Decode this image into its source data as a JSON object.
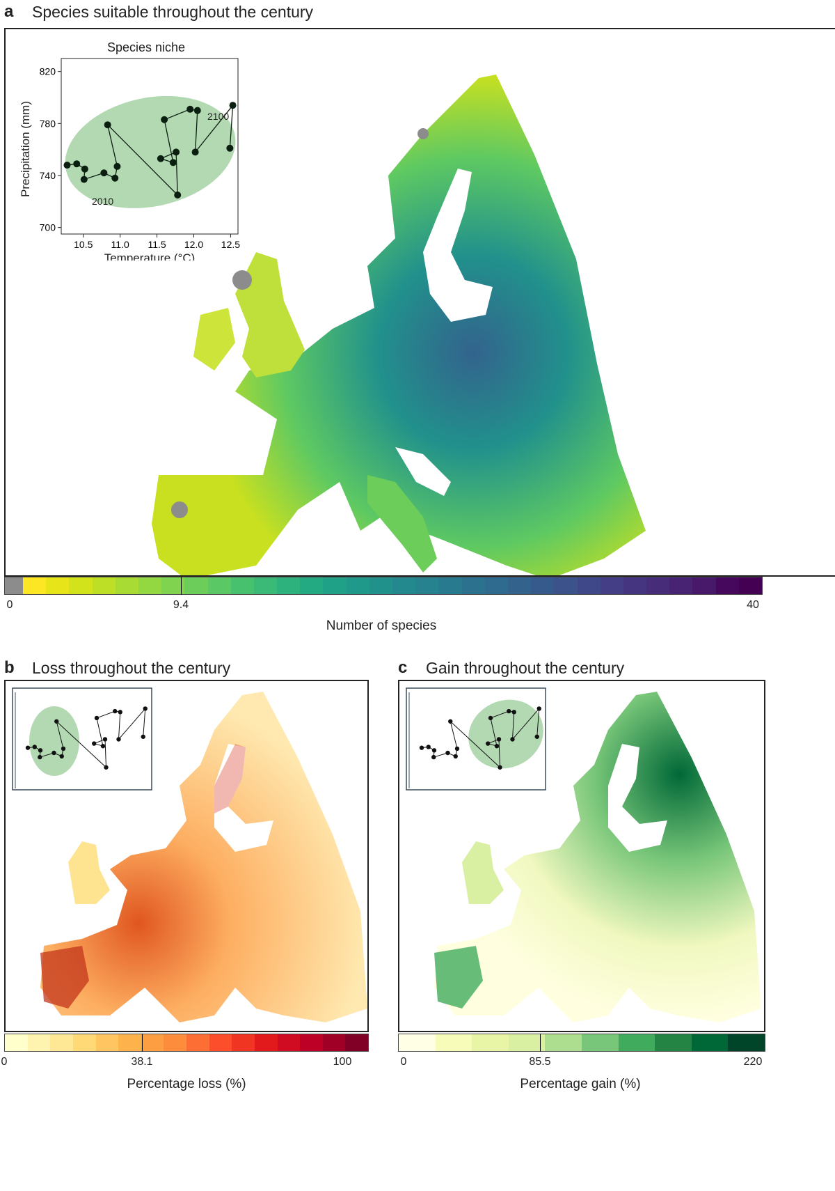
{
  "panels": {
    "a": {
      "letter": "a",
      "title": "Species suitable throughout the century"
    },
    "b": {
      "letter": "b",
      "title": "Loss throughout the century"
    },
    "c": {
      "letter": "c",
      "title": "Gain throughout the century"
    }
  },
  "colorbars": {
    "a": {
      "label": "Number of species",
      "ticks": [
        "0",
        "9.4",
        "40"
      ],
      "min": 0,
      "max": 40,
      "marker": 9.4,
      "nodata_color": "#8c8c8c",
      "colors": [
        "#fde725",
        "#e7e419",
        "#d2e21b",
        "#bddf26",
        "#a8db34",
        "#93d741",
        "#7fd34e",
        "#6ccd5a",
        "#5ac864",
        "#48c16e",
        "#3aba76",
        "#2db27d",
        "#24aa83",
        "#1fa187",
        "#1f998a",
        "#21918c",
        "#23898e",
        "#26828e",
        "#287a8e",
        "#2c728e",
        "#2f6b8e",
        "#33638d",
        "#375a8c",
        "#3b528b",
        "#3f4889",
        "#433e85",
        "#453581",
        "#472c7a",
        "#482374",
        "#48186a",
        "#46085c",
        "#440154"
      ]
    },
    "b": {
      "label": "Percentage loss (%)",
      "ticks": [
        "0",
        "38.1",
        "100"
      ],
      "min": 0,
      "max": 100,
      "marker": 38.1,
      "colors": [
        "#ffffcc",
        "#fff3b0",
        "#ffe895",
        "#fed976",
        "#fec561",
        "#feb24c",
        "#fd9e43",
        "#fd8d3c",
        "#fc6e33",
        "#fc4e2a",
        "#f03523",
        "#e31a1c",
        "#cf0c22",
        "#bd0026",
        "#a00026",
        "#800026"
      ]
    },
    "c": {
      "label": "Percentage gain (%)",
      "ticks": [
        "0",
        "85.5",
        "220"
      ],
      "min": 0,
      "max": 220,
      "marker": 85.5,
      "colors": [
        "#ffffe5",
        "#f7fcb9",
        "#e8f5a6",
        "#d9f0a3",
        "#addd8e",
        "#78c679",
        "#41ab5d",
        "#238443",
        "#006837",
        "#004529"
      ]
    }
  },
  "chart_data": [
    {
      "type": "scatter",
      "title": "Species niche",
      "xlabel": "Temperature (°C)",
      "ylabel": "Precipitation (mm)",
      "xlim": [
        10.2,
        12.6
      ],
      "ylim": [
        695,
        830
      ],
      "xticks": [
        "10.5",
        "11.0",
        "11.5",
        "12.0",
        "12.5"
      ],
      "yticks": [
        "700",
        "740",
        "780",
        "820"
      ],
      "annotations": [
        "2010",
        "2100"
      ],
      "niche_ellipse_color": "#b3d9b3",
      "series": [
        {
          "x": [
            10.28,
            10.41,
            10.51,
            10.52,
            10.78,
            10.83,
            10.93,
            10.96,
            11.55,
            11.6,
            11.72,
            11.76,
            11.78,
            11.95,
            12.02,
            12.05,
            12.49,
            12.53
          ],
          "y": [
            748,
            749,
            737,
            745,
            742,
            779,
            738,
            747,
            753,
            783,
            750,
            758,
            725,
            791,
            758,
            790,
            761,
            794
          ]
        }
      ]
    }
  ],
  "inset_colors": {
    "ellipse": "#b3d9b3",
    "points": "#0b1f10"
  }
}
